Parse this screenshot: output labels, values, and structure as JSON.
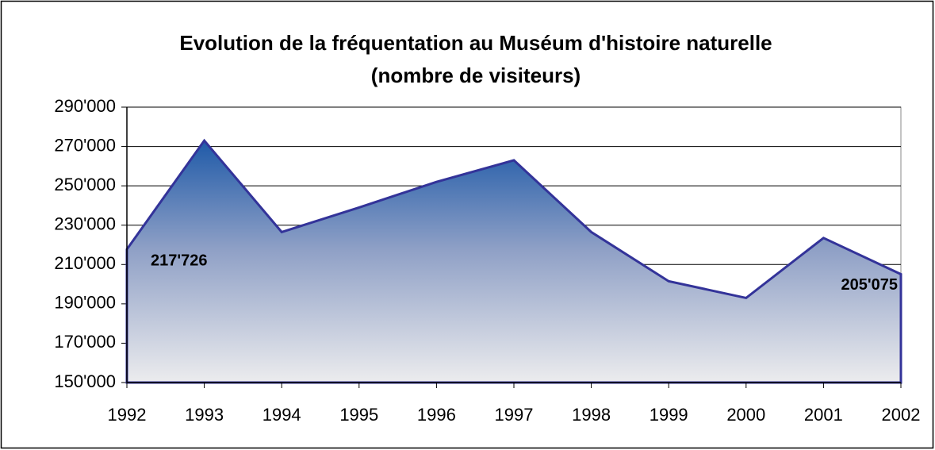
{
  "chart_data": {
    "type": "area",
    "title": "Evolution de la fréquentation au Muséum d'histoire naturelle",
    "subtitle": "(nombre de visiteurs)",
    "categories": [
      "1992",
      "1993",
      "1994",
      "1995",
      "1996",
      "1997",
      "1998",
      "1999",
      "2000",
      "2001",
      "2002"
    ],
    "values": [
      217726,
      273000,
      226500,
      239000,
      252000,
      263000,
      226500,
      201500,
      193000,
      223500,
      205075
    ],
    "value_labels": [
      "217'726",
      null,
      null,
      null,
      null,
      null,
      null,
      null,
      null,
      null,
      "205'075"
    ],
    "color": "#333399",
    "ylim": [
      150000,
      290000
    ],
    "yticks": [
      {
        "value": 150000,
        "label": "150'000"
      },
      {
        "value": 170000,
        "label": "170'000"
      },
      {
        "value": 190000,
        "label": "190'000"
      },
      {
        "value": 210000,
        "label": "210'000"
      },
      {
        "value": 230000,
        "label": "230'000"
      },
      {
        "value": 250000,
        "label": "250'000"
      },
      {
        "value": 270000,
        "label": "270'000"
      },
      {
        "value": 290000,
        "label": "290'000"
      }
    ],
    "grid": true
  }
}
